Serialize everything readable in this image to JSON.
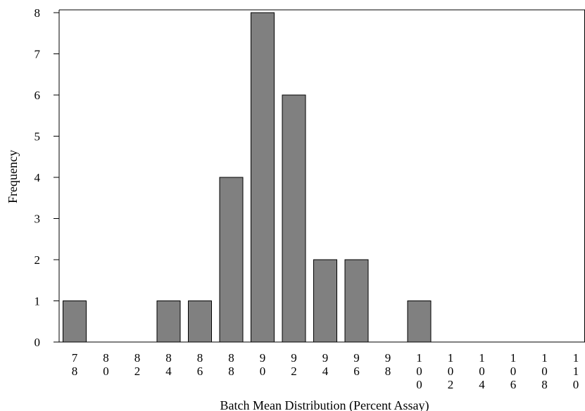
{
  "chart_data": {
    "type": "bar",
    "title": "",
    "xlabel": "Batch Mean Distribution (Percent Assay)",
    "ylabel": "Frequency",
    "categories": [
      "78",
      "80",
      "82",
      "84",
      "86",
      "88",
      "90",
      "92",
      "94",
      "96",
      "98",
      "100",
      "102",
      "104",
      "106",
      "108",
      "110"
    ],
    "values": [
      1,
      0,
      0,
      1,
      1,
      4,
      8,
      6,
      2,
      2,
      0,
      1,
      0,
      0,
      0,
      0,
      0
    ],
    "ylim": [
      0,
      8
    ],
    "yticks": [
      "0",
      "1",
      "2",
      "3",
      "4",
      "5",
      "6",
      "7",
      "8"
    ],
    "grid": false,
    "legend": "none",
    "colors": {
      "bar_fill": "#808080",
      "bar_stroke": "#000000",
      "axis": "#000000"
    }
  }
}
